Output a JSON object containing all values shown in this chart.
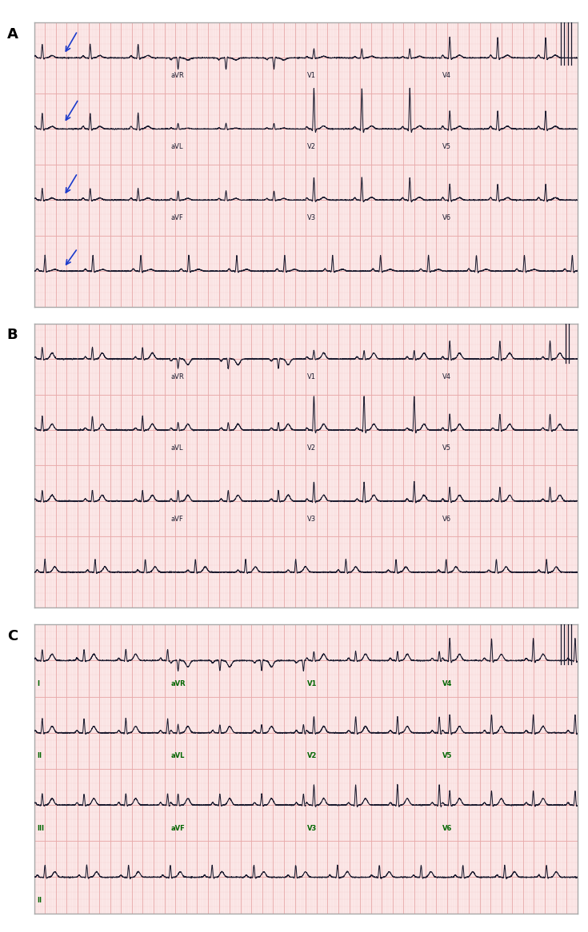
{
  "panel_labels": [
    "A",
    "B",
    "C"
  ],
  "background_color": "#fce8e8",
  "grid_major_color": "#e8a8a8",
  "grid_minor_color": "#f5d0d0",
  "ecg_line_color": "#1a1a2e",
  "border_color": "#aaaaaa",
  "outer_bg": "#ffffff",
  "fig_width": 7.35,
  "fig_height": 11.66,
  "arrow_color": "#1a3acc",
  "label_color_AB": "#1a1a2e",
  "label_color_C": "#006600",
  "panel_label_fontsize": 13,
  "lead_label_fontsize": 6.0
}
